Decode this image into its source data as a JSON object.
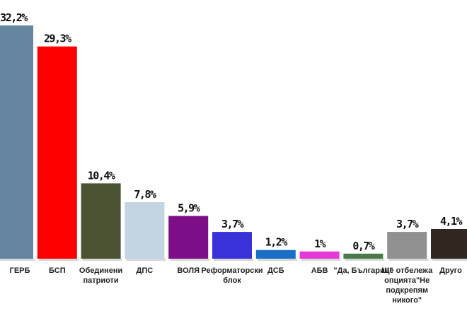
{
  "chart_data": {
    "type": "bar",
    "categories": [
      [
        "ГЕРБ"
      ],
      [
        "БСП"
      ],
      [
        "Обединени",
        "патриоти"
      ],
      [
        "ДПС"
      ],
      [
        "ВОЛЯ"
      ],
      [
        "Реформаторски",
        "блок"
      ],
      [
        "ДСБ"
      ],
      [
        "АБВ"
      ],
      [
        "\"Да, България\""
      ],
      [
        "Ще отбележа",
        "опцията\"Не",
        "подкрепям",
        "никого\""
      ],
      [
        "Друго"
      ]
    ],
    "values": [
      32.2,
      29.3,
      10.4,
      7.8,
      5.9,
      3.7,
      1.2,
      1,
      0.7,
      3.7,
      4.1
    ],
    "value_labels": [
      "32,2%",
      "29,3%",
      "10,4%",
      "7,8%",
      "5,9%",
      "3,7%",
      "1,2%",
      "1%",
      "0,7%",
      "3,7%",
      "4,1%"
    ],
    "colors": [
      "#6585a0",
      "#ff0000",
      "#4a5332",
      "#c3d4e2",
      "#7d0e88",
      "#3a32d8",
      "#1a6fc6",
      "#e63ad8",
      "#4a7a4a",
      "#909090",
      "#302820"
    ],
    "ylim": [
      0,
      32.2
    ]
  }
}
